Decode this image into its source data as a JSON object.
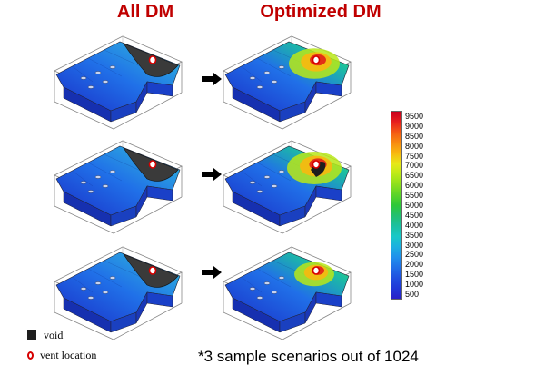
{
  "titles": {
    "left": "All DM",
    "right": "Optimized DM"
  },
  "colorbar": {
    "ticks": [
      "9500",
      "9000",
      "8500",
      "8000",
      "7500",
      "7000",
      "6500",
      "6000",
      "5500",
      "5000",
      "4500",
      "4000",
      "3500",
      "3000",
      "2500",
      "2000",
      "1500",
      "1000",
      "500"
    ],
    "colors": [
      "#c8001e",
      "#e8201e",
      "#f45a14",
      "#f88c10",
      "#f8b810",
      "#e8e818",
      "#bcea18",
      "#8ee01c",
      "#5cd428",
      "#2ec838",
      "#22c070",
      "#1cc0a0",
      "#18c8c8",
      "#1cb0e0",
      "#2090ec",
      "#2070e8",
      "#2050e0",
      "#2038d8",
      "#2a20c8"
    ]
  },
  "legend": {
    "void_label": "void",
    "vent_label": "vent location"
  },
  "footnote": "*3 sample scenarios out of 1024",
  "scenarios": [
    {
      "left": {
        "void": true,
        "vent": true,
        "hotspot": false
      },
      "right": {
        "void": false,
        "vent": true,
        "hotspot": "medium"
      }
    },
    {
      "left": {
        "void": true,
        "vent": true,
        "hotspot": false
      },
      "right": {
        "void": true,
        "vent": true,
        "hotspot": "high"
      }
    },
    {
      "left": {
        "void": true,
        "vent": true,
        "hotspot": false
      },
      "right": {
        "void": false,
        "vent": true,
        "hotspot": "low"
      }
    }
  ]
}
